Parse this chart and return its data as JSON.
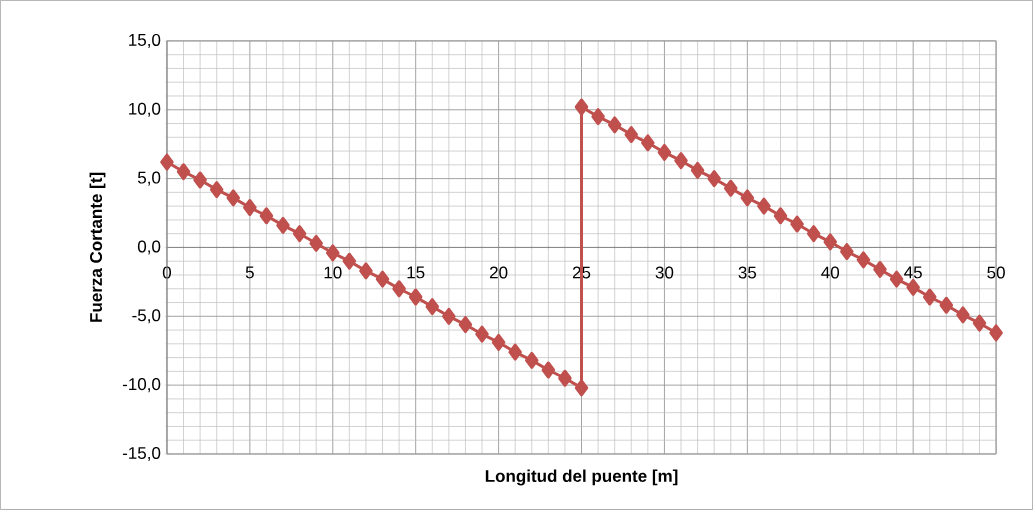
{
  "chart_data": {
    "type": "line",
    "xlabel": "Longitud del puente [m]",
    "ylabel": "Fuerza Cortante [t]",
    "series": [
      {
        "color": "#c0504d",
        "x": [
          0,
          1,
          2,
          3,
          4,
          5,
          6,
          7,
          8,
          9,
          10,
          11,
          12,
          13,
          14,
          15,
          16,
          17,
          18,
          19,
          20,
          21,
          22,
          23,
          24,
          25,
          25,
          26,
          27,
          28,
          29,
          30,
          31,
          32,
          33,
          34,
          35,
          36,
          37,
          38,
          39,
          40,
          41,
          42,
          43,
          44,
          45,
          46,
          47,
          48,
          49,
          50
        ],
        "values": [
          6.2,
          5.5,
          4.9,
          4.2,
          3.6,
          2.9,
          2.3,
          1.6,
          1.0,
          0.3,
          -0.4,
          -1.0,
          -1.7,
          -2.3,
          -3.0,
          -3.6,
          -4.3,
          -5.0,
          -5.6,
          -6.3,
          -6.9,
          -7.6,
          -8.2,
          -8.9,
          -9.5,
          -10.2,
          10.2,
          9.5,
          8.9,
          8.2,
          7.6,
          6.9,
          6.3,
          5.6,
          5.0,
          4.3,
          3.6,
          3.0,
          2.3,
          1.7,
          1.0,
          0.4,
          -0.3,
          -0.9,
          -1.6,
          -2.3,
          -2.9,
          -3.6,
          -4.2,
          -4.9,
          -5.5,
          -6.2
        ]
      }
    ],
    "xlim": [
      0,
      50
    ],
    "xticks": [
      0,
      5,
      10,
      15,
      20,
      25,
      30,
      35,
      40,
      45,
      50
    ],
    "ylim": [
      -15,
      15
    ],
    "yticks": [
      {
        "value": -15,
        "label": "-15,0"
      },
      {
        "value": -10,
        "label": "-10,0"
      },
      {
        "value": -5,
        "label": "-5,0"
      },
      {
        "value": 0,
        "label": "0,0"
      },
      {
        "value": 5,
        "label": "5,0"
      },
      {
        "value": 10,
        "label": "10,0"
      },
      {
        "value": 15,
        "label": "15,0"
      }
    ],
    "grid": true,
    "marker": "diamond",
    "line_style": "solid"
  }
}
